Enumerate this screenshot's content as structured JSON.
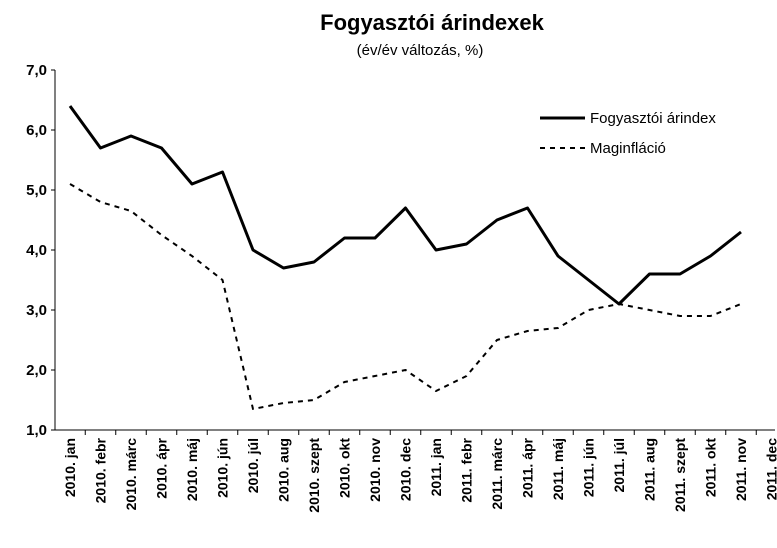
{
  "chart_data": {
    "type": "line",
    "title": "Fogyasztói árindexek",
    "subtitle": "(év/év változás, %)",
    "categories": [
      "2010. jan",
      "2010. febr",
      "2010. márc",
      "2010. ápr",
      "2010. máj",
      "2010. jún",
      "2010. júl",
      "2010. aug",
      "2010. szept",
      "2010. okt",
      "2010. nov",
      "2010. dec",
      "2011. jan",
      "2011. febr",
      "2011. márc",
      "2011. ápr",
      "2011. máj",
      "2011. jún",
      "2011. júl",
      "2011. aug",
      "2011. szept",
      "2011. okt",
      "2011. nov",
      "2011. dec"
    ],
    "series": [
      {
        "name": "Fogyasztói árindex",
        "color": "#000000",
        "dash": false,
        "values": [
          6.4,
          5.7,
          5.9,
          5.7,
          5.1,
          5.3,
          4.0,
          3.7,
          3.8,
          4.2,
          4.2,
          4.7,
          4.0,
          4.1,
          4.5,
          4.7,
          3.9,
          3.5,
          3.1,
          3.6,
          3.6,
          3.9,
          4.3,
          null
        ]
      },
      {
        "name": "Maginfláció",
        "color": "#000000",
        "dash": true,
        "values": [
          5.1,
          4.8,
          4.65,
          4.25,
          3.9,
          3.5,
          1.35,
          1.45,
          1.5,
          1.8,
          1.9,
          2.0,
          1.65,
          1.9,
          2.5,
          2.65,
          2.7,
          3.0,
          3.1,
          3.0,
          2.9,
          2.9,
          3.1,
          null
        ]
      }
    ],
    "ylim": [
      1.0,
      7.0
    ],
    "yticks": [
      {
        "value": 1,
        "label": "1,0"
      },
      {
        "value": 2,
        "label": "2,0"
      },
      {
        "value": 3,
        "label": "3,0"
      },
      {
        "value": 4,
        "label": "4,0"
      },
      {
        "value": 5,
        "label": "5,0"
      },
      {
        "value": 6,
        "label": "6,0"
      },
      {
        "value": 7,
        "label": "7,0"
      }
    ],
    "legend": "upper right"
  }
}
